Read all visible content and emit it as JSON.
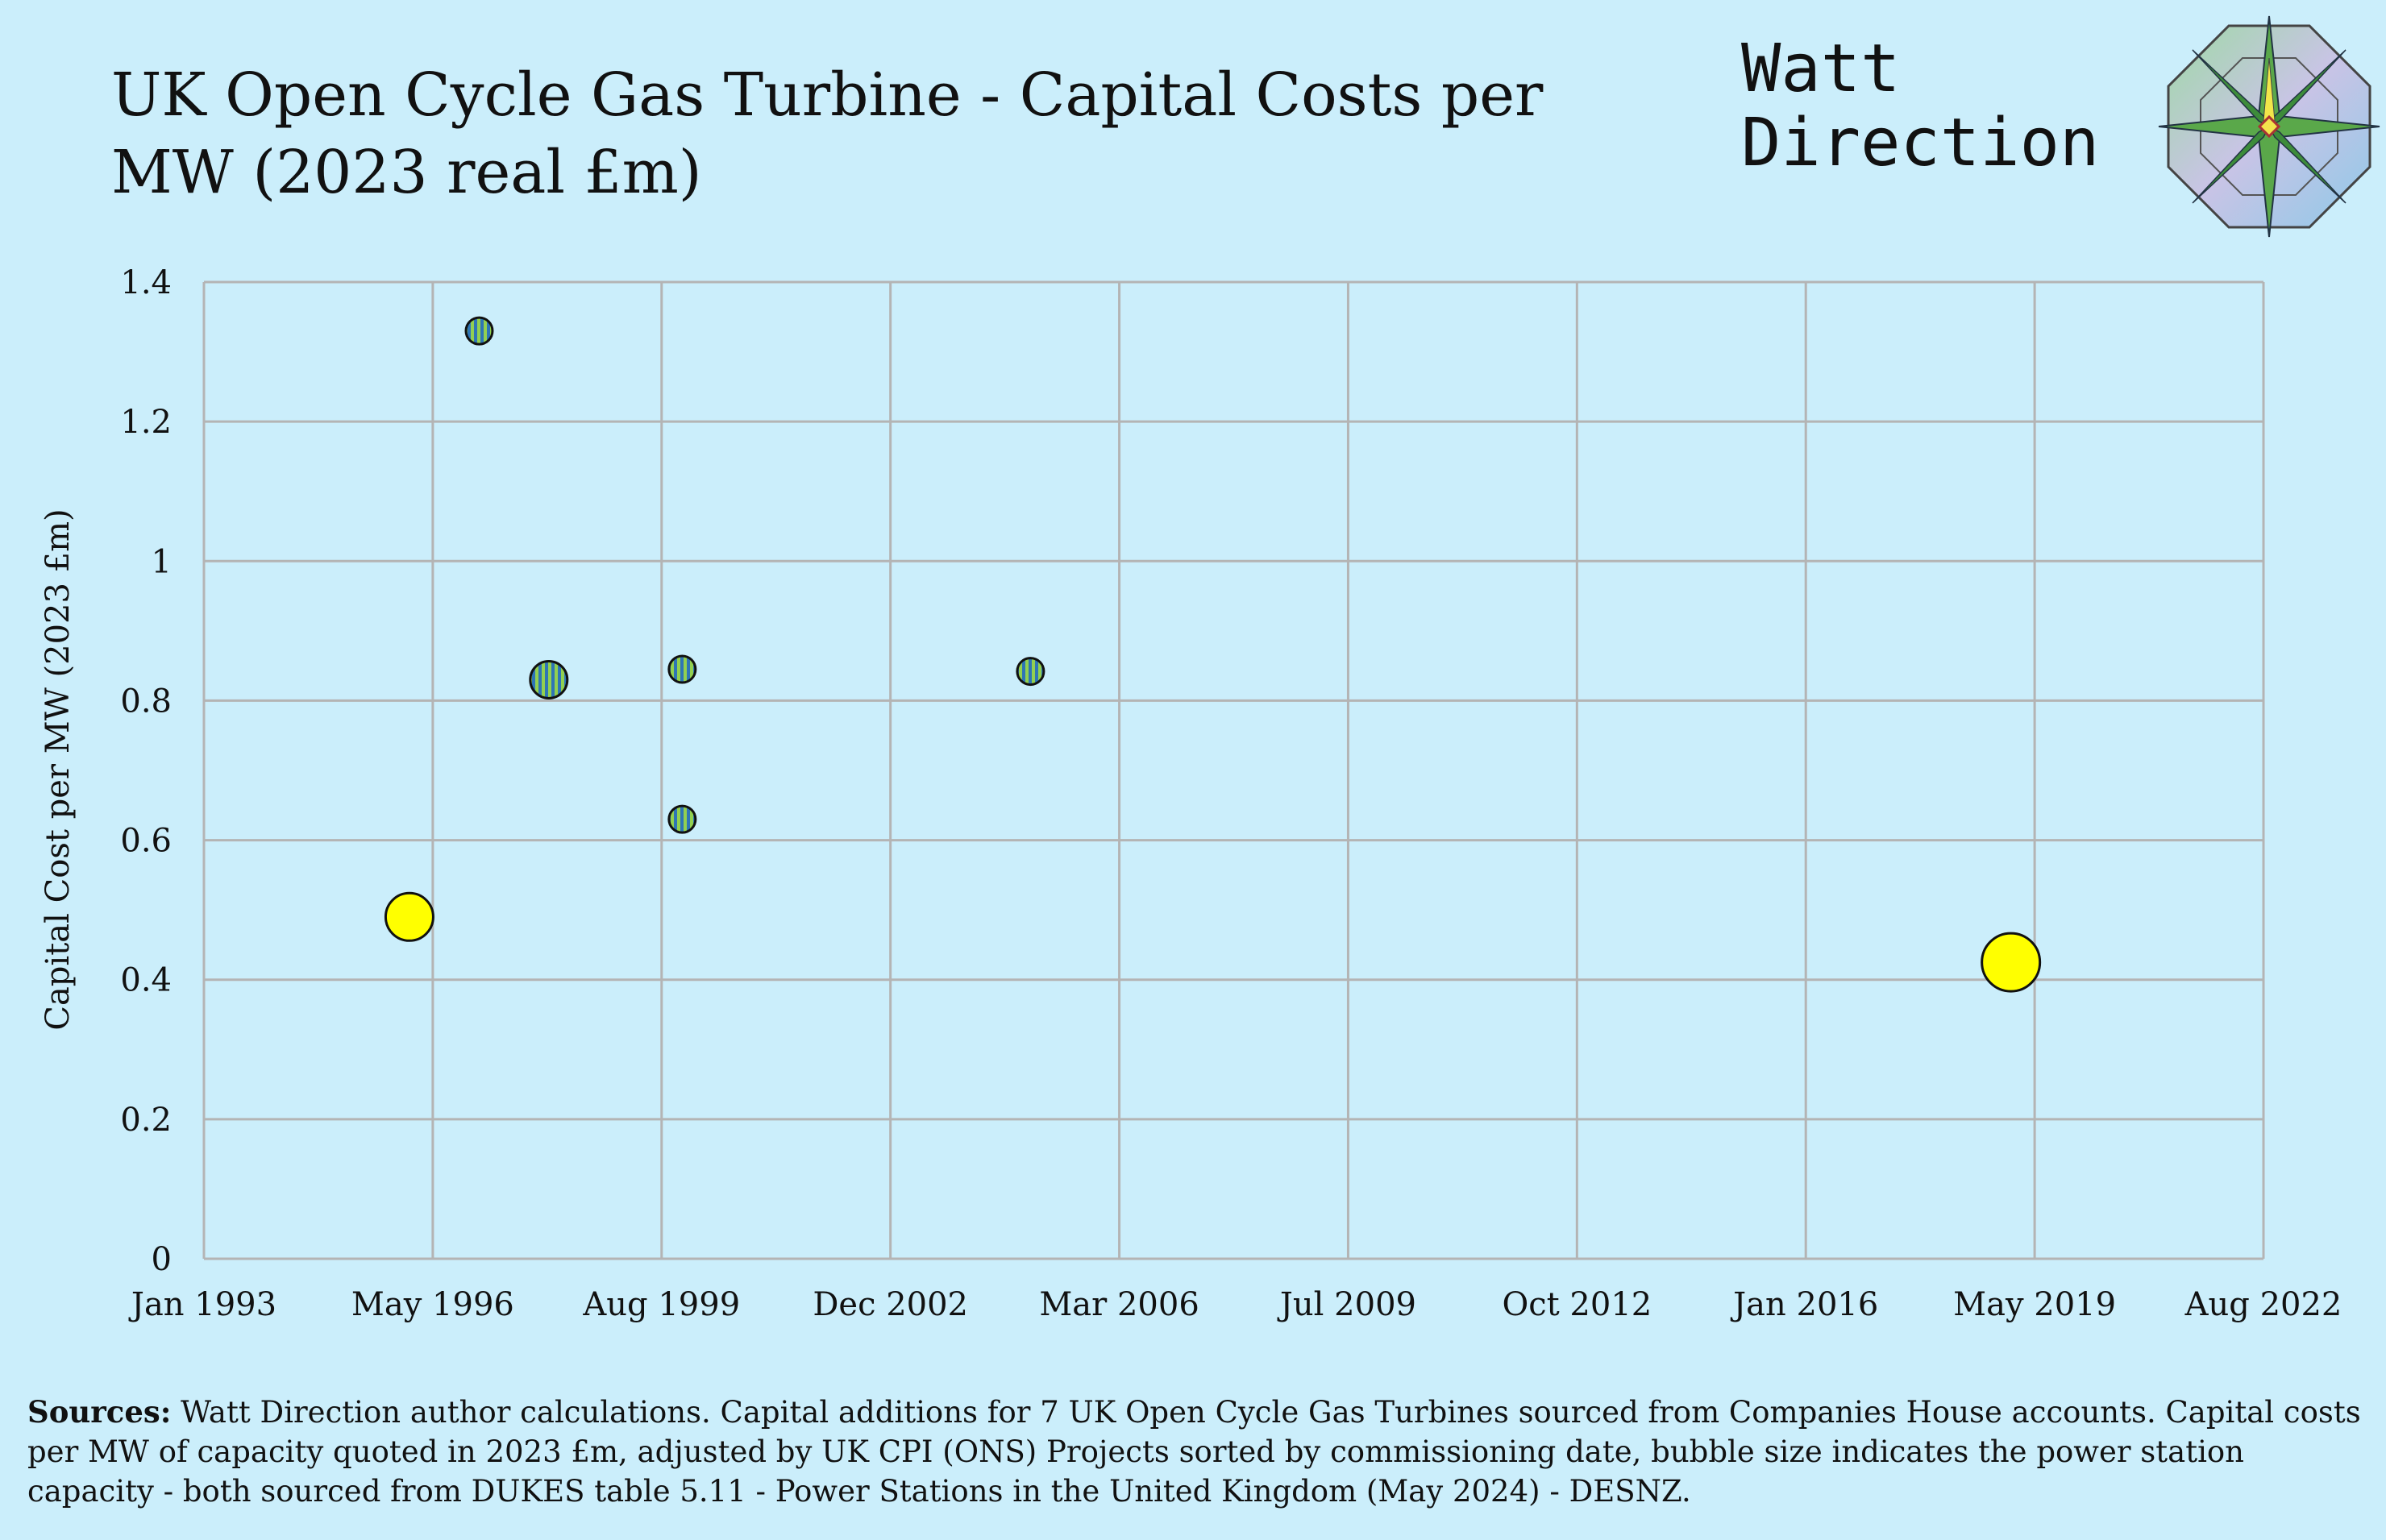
{
  "header": {
    "title": "UK Open Cycle Gas Turbine - Capital Costs per MW (2023 real £m)",
    "brand_line1": "Watt",
    "brand_line2": "Direction"
  },
  "sources": {
    "label": "Sources:",
    "text": " Watt Direction author calculations. Capital additions for 7 UK Open Cycle Gas Turbines sourced from Companies House accounts. Capital costs per MW of capacity quoted in 2023 £m, adjusted by UK CPI (ONS) Projects sorted by commissioning date, bubble size indicates the power station capacity - both sourced from DUKES table 5.11   - Power Stations in the United Kingdom (May 2024) - DESNZ."
  },
  "colors": {
    "background": "#cbeefb",
    "grid": "#b4b4b4",
    "bubble_yellow": "#ffff00",
    "stripe_green": "#92d050",
    "stripe_blue": "#2e75b6"
  },
  "chart_data": {
    "type": "bubble",
    "title": "UK Open Cycle Gas Turbine - Capital Costs per MW (2023 real £m)",
    "xlabel": "",
    "ylabel": "Capital Cost per MW (2023 £m)",
    "xlim": [
      "1993-01-01",
      "2022-08-01"
    ],
    "ylim": [
      0,
      1.4
    ],
    "xticks": [
      "Jan 1993",
      "May 1996",
      "Aug 1999",
      "Dec 2002",
      "Mar 2006",
      "Jul 2009",
      "Oct 2012",
      "Jan 2016",
      "May 2019",
      "Aug 2022"
    ],
    "yticks": [
      "0",
      "0.2",
      "0.4",
      "0.6",
      "0.8",
      "1",
      "1.2",
      "1.4"
    ],
    "grid": true,
    "legend": "none",
    "points": [
      {
        "date": "1995-12-15",
        "value": 0.49,
        "capacity_size": 3,
        "fill": "yellow"
      },
      {
        "date": "1996-12-15",
        "value": 1.33,
        "capacity_size": 1,
        "fill": "striped"
      },
      {
        "date": "1997-12-15",
        "value": 0.83,
        "capacity_size": 2,
        "fill": "striped"
      },
      {
        "date": "1999-11-15",
        "value": 0.845,
        "capacity_size": 1,
        "fill": "striped"
      },
      {
        "date": "1999-11-15",
        "value": 0.63,
        "capacity_size": 1,
        "fill": "striped"
      },
      {
        "date": "2004-11-15",
        "value": 0.842,
        "capacity_size": 1,
        "fill": "striped"
      },
      {
        "date": "2018-12-15",
        "value": 0.425,
        "capacity_size": 4,
        "fill": "yellow"
      }
    ]
  }
}
